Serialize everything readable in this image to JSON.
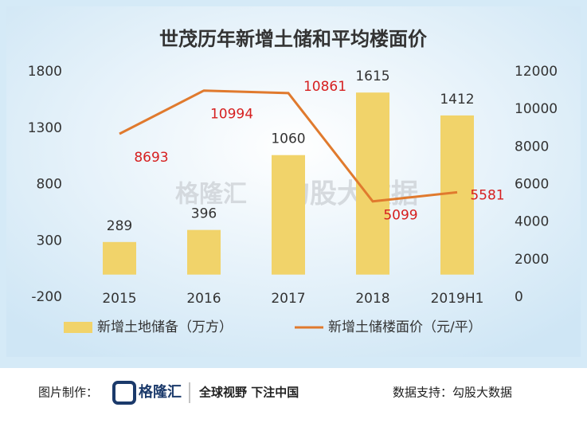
{
  "chart_data": {
    "type": "bar",
    "title": "世茂历年新增土储和平均楼面价",
    "categories": [
      "2015",
      "2016",
      "2017",
      "2018",
      "2019H1"
    ],
    "series": [
      {
        "name": "新增土地储备（万方）",
        "type": "bar",
        "color": "#f1d36a",
        "values": [
          289,
          396,
          1060,
          1615,
          1412
        ]
      },
      {
        "name": "新增土储楼面价（元/平）",
        "type": "line",
        "axis": "y2",
        "color": "#e07a2e",
        "values": [
          8693,
          10994,
          10861,
          5099,
          5581
        ]
      }
    ],
    "ylim": [
      -200,
      1800
    ],
    "yticks": [
      -200,
      300,
      800,
      1300,
      1800
    ],
    "y2lim": [
      0,
      12000
    ],
    "y2ticks": [
      0,
      2000,
      4000,
      6000,
      8000,
      10000,
      12000
    ],
    "watermark": [
      "格隆汇",
      "勾股大数据"
    ]
  },
  "footer": {
    "made_by": "图片制作：",
    "logo": "格隆汇",
    "slogan": "全球视野 下注中国",
    "data_support": "数据支持：勾股大数据"
  }
}
